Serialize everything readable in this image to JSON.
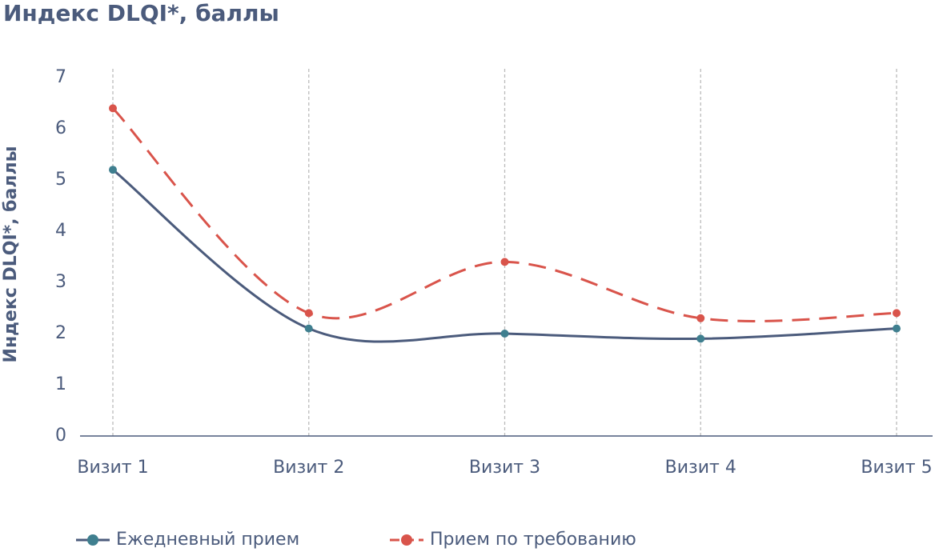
{
  "chart_data": {
    "type": "line",
    "title": "Индекс DLQI*, баллы",
    "ylabel": "Индекс DLQI*, баллы",
    "categories": [
      "Визит 1",
      "Визит 2",
      "Визит 3",
      "Визит 4",
      "Визит 5"
    ],
    "series": [
      {
        "name": "Ежедневный прием",
        "color": "#4b5b7c",
        "marker_color": "#3f7f8f",
        "dash": false,
        "values": [
          5.2,
          2.1,
          2.0,
          1.9,
          2.1
        ]
      },
      {
        "name": "Прием по требованию",
        "color": "#d9544b",
        "marker_color": "#d9544b",
        "dash": true,
        "values": [
          6.4,
          2.4,
          3.4,
          2.3,
          2.4
        ]
      }
    ],
    "ylim": [
      0,
      7
    ],
    "yticks": [
      0,
      1,
      2,
      3,
      4,
      5,
      6,
      7
    ],
    "grid": false,
    "category_grid": true,
    "smooth": true,
    "legend": "bottom"
  }
}
